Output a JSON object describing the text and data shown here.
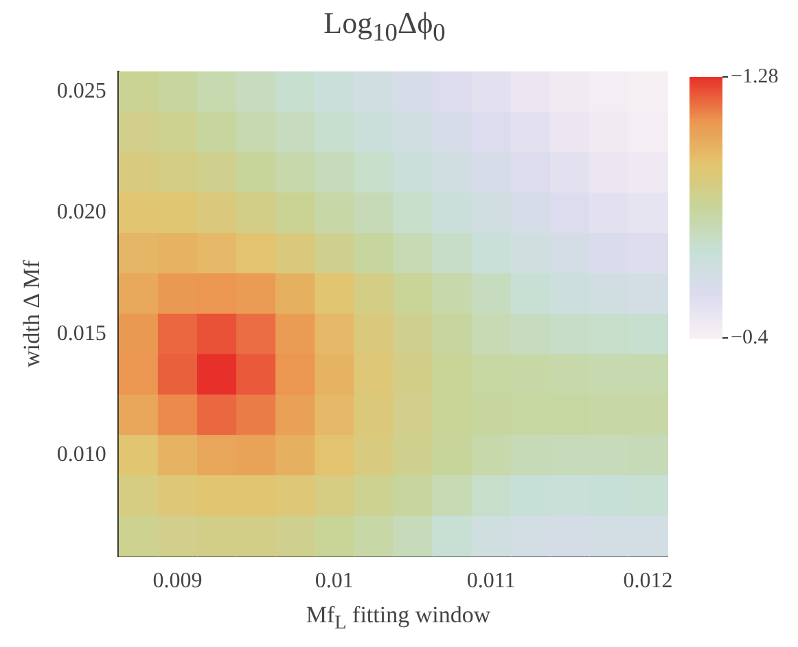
{
  "chart_data": {
    "type": "heatmap",
    "title": "Log$_{10}$Δϕ$_{0}$",
    "xlabel": "Mf$_{L}$ fitting window",
    "ylabel": "width Δ Mf",
    "categories": [
      null,
      "0.009",
      null,
      null,
      null,
      "0.01",
      null,
      null,
      null,
      "0.011",
      null,
      null,
      null,
      "0.012"
    ],
    "y_categories": [
      "0.025",
      null,
      null,
      "0.020",
      null,
      null,
      "0.015",
      null,
      null,
      "0.010",
      null,
      null
    ],
    "clim": [
      -1.28,
      -0.4
    ],
    "cticks": [
      -1.28,
      -0.4
    ],
    "cells": [
      [
        -0.86,
        -0.83,
        -0.79,
        -0.75,
        -0.71,
        -0.67,
        -0.63,
        -0.59,
        -0.55,
        -0.51,
        -0.47,
        -0.44,
        -0.42,
        -0.41
      ],
      [
        -0.89,
        -0.87,
        -0.83,
        -0.79,
        -0.75,
        -0.71,
        -0.67,
        -0.63,
        -0.59,
        -0.55,
        -0.51,
        -0.47,
        -0.44,
        -0.42
      ],
      [
        -0.93,
        -0.91,
        -0.88,
        -0.84,
        -0.8,
        -0.76,
        -0.72,
        -0.67,
        -0.63,
        -0.59,
        -0.55,
        -0.51,
        -0.47,
        -0.45
      ],
      [
        -0.98,
        -0.97,
        -0.94,
        -0.9,
        -0.86,
        -0.81,
        -0.77,
        -0.72,
        -0.67,
        -0.63,
        -0.59,
        -0.55,
        -0.51,
        -0.49
      ],
      [
        -1.03,
        -1.04,
        -1.02,
        -0.99,
        -0.94,
        -0.88,
        -0.83,
        -0.78,
        -0.73,
        -0.68,
        -0.64,
        -0.6,
        -0.56,
        -0.54
      ],
      [
        -1.07,
        -1.12,
        -1.13,
        -1.11,
        -1.05,
        -0.98,
        -0.91,
        -0.85,
        -0.8,
        -0.75,
        -0.7,
        -0.66,
        -0.63,
        -0.61
      ],
      [
        -1.12,
        -1.2,
        -1.23,
        -1.19,
        -1.11,
        -1.02,
        -0.94,
        -0.88,
        -0.83,
        -0.78,
        -0.75,
        -0.73,
        -0.72,
        -0.71
      ],
      [
        -1.13,
        -1.21,
        -1.28,
        -1.22,
        -1.13,
        -1.04,
        -0.96,
        -0.9,
        -0.85,
        -0.82,
        -0.81,
        -0.8,
        -0.79,
        -0.79
      ],
      [
        -1.08,
        -1.15,
        -1.2,
        -1.17,
        -1.1,
        -1.02,
        -0.95,
        -0.89,
        -0.85,
        -0.83,
        -0.82,
        -0.82,
        -0.81,
        -0.81
      ],
      [
        -0.98,
        -1.04,
        -1.08,
        -1.09,
        -1.05,
        -0.99,
        -0.93,
        -0.88,
        -0.84,
        -0.8,
        -0.77,
        -0.76,
        -0.76,
        -0.77
      ],
      [
        -0.92,
        -0.96,
        -0.98,
        -0.98,
        -0.96,
        -0.92,
        -0.87,
        -0.83,
        -0.78,
        -0.72,
        -0.69,
        -0.68,
        -0.69,
        -0.7
      ],
      [
        -0.87,
        -0.89,
        -0.9,
        -0.9,
        -0.88,
        -0.85,
        -0.81,
        -0.76,
        -0.7,
        -0.64,
        -0.61,
        -0.6,
        -0.61,
        -0.62
      ]
    ]
  }
}
